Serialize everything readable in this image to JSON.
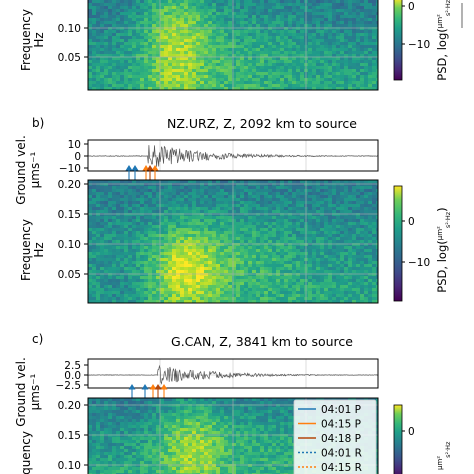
{
  "chart_data": [
    {
      "type": "heatmap",
      "panel": "",
      "title": "",
      "xlabel": "",
      "ylabel": "Frequency Hz",
      "yticks": [
        "0.10",
        "0.05"
      ],
      "colorbar": {
        "label": "PSD, log(μm²/s²·Hz)",
        "ticks": [
          "0",
          "−10"
        ]
      }
    },
    {
      "type": "line",
      "panel": "b)",
      "title": "NZ.URZ, Z, 2092 km to source",
      "ylabel": "Ground vel. μms⁻¹",
      "yticks": [
        "10",
        "0",
        "−10"
      ],
      "ylim": [
        -13,
        13
      ]
    },
    {
      "type": "heatmap",
      "panel": "",
      "title": "",
      "xlabel": "",
      "ylabel": "Frequency Hz",
      "yticks": [
        "0.20",
        "0.15",
        "0.10",
        "0.05"
      ],
      "ylim": [
        0,
        0.2
      ],
      "colorbar": {
        "label": "PSD, log(μm²/s²·Hz)",
        "ticks": [
          "0",
          "−10"
        ]
      }
    },
    {
      "type": "line",
      "panel": "c)",
      "title": "G.CAN, Z, 3841 km to source",
      "ylabel": "Ground vel. μms⁻¹",
      "yticks": [
        "2.5",
        "0.0",
        "−2.5"
      ],
      "ylim": [
        -4,
        4
      ]
    },
    {
      "type": "heatmap",
      "panel": "",
      "title": "",
      "xlabel": "",
      "ylabel": "Frequency Hz",
      "yticks": [
        "0.20",
        "0.15",
        "0.10"
      ],
      "ylim": [
        0,
        0.2
      ],
      "colorbar": {
        "label": "",
        "ticks": [
          "0"
        ]
      },
      "legend": {
        "placement": "right",
        "entries": [
          {
            "label": "04:01 P",
            "color": "#1f77b4",
            "style": "solid"
          },
          {
            "label": "04:15 P",
            "color": "#ff7f0e",
            "style": "solid"
          },
          {
            "label": "04:18 P",
            "color": "#b5460a",
            "style": "solid"
          },
          {
            "label": "04:01 R",
            "color": "#1f77b4",
            "style": "dotted"
          },
          {
            "label": "04:15 R",
            "color": "#ff7f0e",
            "style": "dotted"
          }
        ]
      }
    }
  ],
  "panel_b": {
    "label": "b)",
    "title": "NZ.URZ, Z, 2092 km to source"
  },
  "panel_c": {
    "label": "c)",
    "title": "G.CAN, Z, 3841 km to source"
  },
  "axes": {
    "ground_vel_line1": "Ground vel.",
    "ground_vel_line2": "μms⁻¹",
    "freq_line1": "Frequency",
    "freq_line2": "Hz",
    "freq_partial": "Frequency",
    "psd_label": "PSD, log(",
    "psd_frac_num": "μm²",
    "psd_frac_den": "s²·Hz",
    "psd_close": ")"
  },
  "ticks": {
    "heat_top": [
      "0.10",
      "0.05"
    ],
    "trace_b": [
      "10",
      "0",
      "−10"
    ],
    "heat_b": [
      "0.20",
      "0.15",
      "0.10",
      "0.05"
    ],
    "trace_c": [
      "2.5",
      "0.0",
      "−2.5"
    ],
    "heat_c": [
      "0.20",
      "0.15",
      "0.10"
    ],
    "cbar": [
      "0",
      "−10"
    ]
  },
  "legend": [
    {
      "label": "04:01 P",
      "color": "#1f77b4",
      "dash": ""
    },
    {
      "label": "04:15 P",
      "color": "#ff7f0e",
      "dash": ""
    },
    {
      "label": "04:18 P",
      "color": "#b5460a",
      "dash": ""
    },
    {
      "label": "04:01 R",
      "color": "#1f77b4",
      "dash": "2,2"
    },
    {
      "label": "04:15 R",
      "color": "#ff7f0e",
      "dash": "2,2"
    }
  ]
}
